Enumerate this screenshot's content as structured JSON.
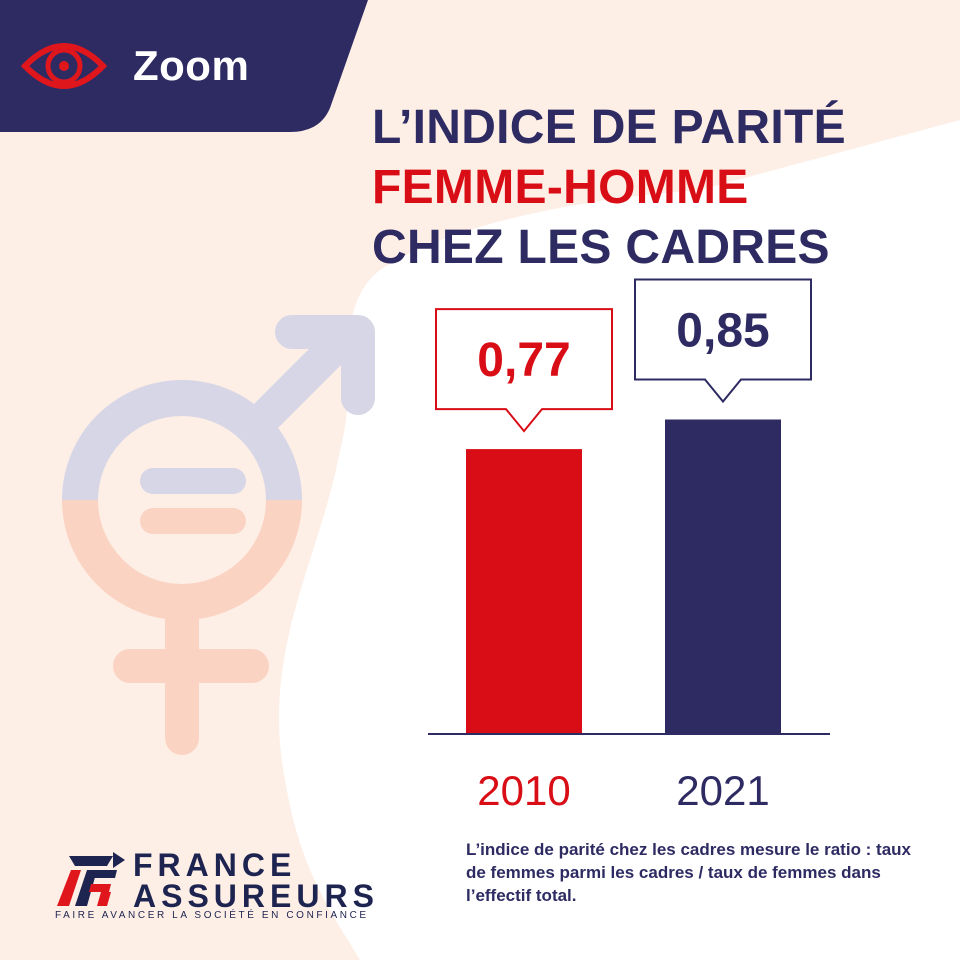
{
  "header": {
    "tab_label": "Zoom",
    "title_line1": "L’INDICE DE PARITÉ",
    "title_line2": "FEMME-HOMME",
    "title_line3": "CHEZ LES CADRES"
  },
  "colors": {
    "navy": "#2e2b63",
    "red": "#d90d15",
    "peach_bg": "#fdeee6",
    "lilac": "#d6d6e6",
    "salmon": "#fbd3c2"
  },
  "chart_data": {
    "type": "bar",
    "categories": [
      "2010",
      "2021"
    ],
    "values": [
      0.77,
      0.85
    ],
    "value_labels": [
      "0,77",
      "0,85"
    ],
    "title": "L’INDICE DE PARITÉ FEMME-HOMME CHEZ LES CADRES",
    "ylim": [
      0,
      1
    ],
    "grid": false,
    "bar_colors": [
      "#d90d15",
      "#2e2b63"
    ]
  },
  "note": "L’indice de parité chez les cadres mesure le ratio : taux de femmes parmi les cadres / taux de femmes dans l’effectif total.",
  "logo": {
    "line1": "FRANCE",
    "line2": "ASSUREURS",
    "tagline": "FAIRE AVANCER LA SOCIÉTÉ EN CONFIANCE"
  },
  "icons": [
    "eye-icon",
    "gender-symbol-icon",
    "france-assureurs-logo-icon"
  ]
}
